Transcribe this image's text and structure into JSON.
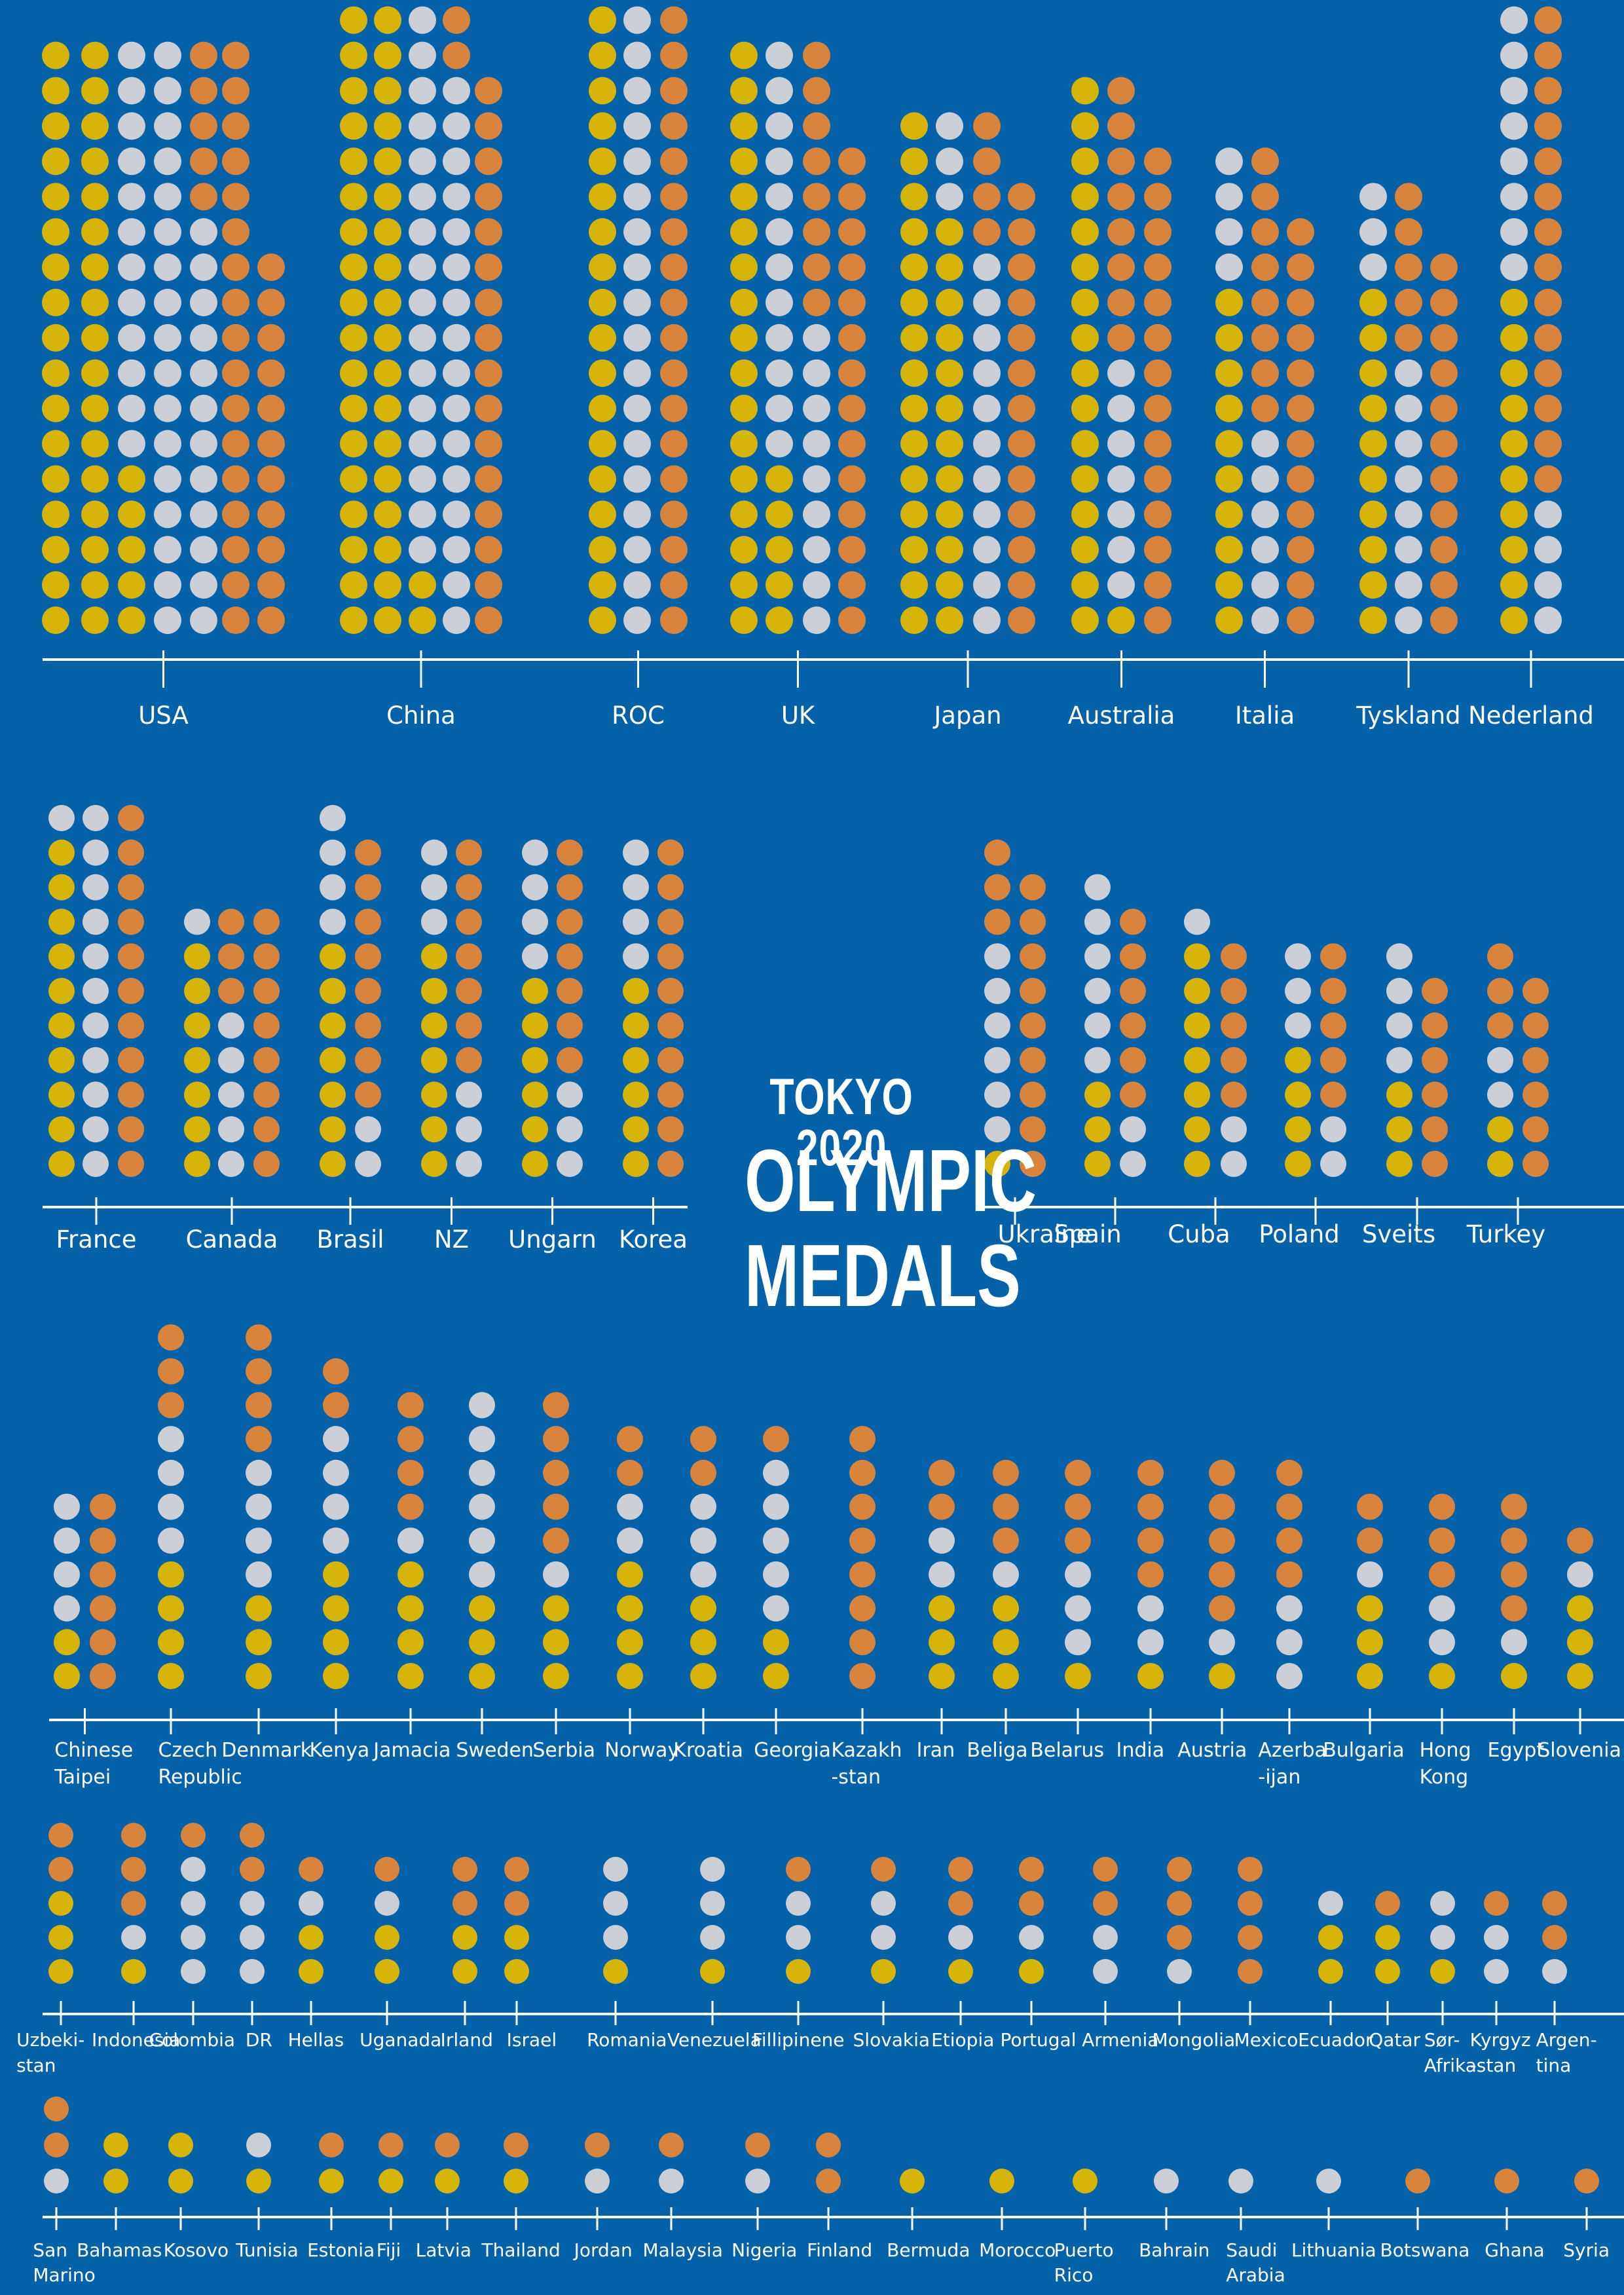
{
  "title": {
    "line1": "TOKYO 2020",
    "line2": "OLYMPIC",
    "line3": "MEDALS"
  },
  "colors": {
    "background": "#0562a8",
    "gold": "#d6b40a",
    "silver": "#cdcfd6",
    "bronze": "#d9843d",
    "axis": "#ffffff",
    "label": "#ffffff"
  },
  "chart_data": {
    "type": "pictogram-bar",
    "legend": "none",
    "series": [
      "gold",
      "silver",
      "bronze"
    ],
    "countries": [
      {
        "label": "USA",
        "gold": 39,
        "silver": 41,
        "bronze": 33
      },
      {
        "label": "China",
        "gold": 38,
        "silver": 32,
        "bronze": 18
      },
      {
        "label": "ROC",
        "gold": 20,
        "silver": 28,
        "bronze": 23
      },
      {
        "label": "UK",
        "gold": 22,
        "silver": 21,
        "bronze": 22
      },
      {
        "label": "Japan",
        "gold": 27,
        "silver": 14,
        "bronze": 17
      },
      {
        "label": "Australia",
        "gold": 17,
        "silver": 7,
        "bronze": 22
      },
      {
        "label": "Italia",
        "gold": 10,
        "silver": 10,
        "bronze": 20
      },
      {
        "label": "Tyskland",
        "gold": 10,
        "silver": 11,
        "bronze": 16
      },
      {
        "label": "Nederland",
        "gold": 10,
        "silver": 12,
        "bronze": 14
      },
      {
        "label": "France",
        "gold": 10,
        "silver": 12,
        "bronze": 11
      },
      {
        "label": "Canada",
        "gold": 7,
        "silver": 6,
        "bronze": 11
      },
      {
        "label": "Brasil",
        "gold": 7,
        "silver": 6,
        "bronze": 8
      },
      {
        "label": "NZ",
        "gold": 7,
        "silver": 6,
        "bronze": 7
      },
      {
        "label": "Ungarn",
        "gold": 6,
        "silver": 7,
        "bronze": 7
      },
      {
        "label": "Korea",
        "gold": 6,
        "silver": 4,
        "bronze": 10
      },
      {
        "label": "Ukraine",
        "gold": 1,
        "silver": 6,
        "bronze": 12
      },
      {
        "label": "Spain",
        "gold": 3,
        "silver": 8,
        "bronze": 6
      },
      {
        "label": "Cuba",
        "gold": 7,
        "silver": 3,
        "bronze": 5
      },
      {
        "label": "Poland",
        "gold": 4,
        "silver": 5,
        "bronze": 5
      },
      {
        "label": "Sveits",
        "gold": 3,
        "silver": 4,
        "bronze": 6
      },
      {
        "label": "Turkey",
        "gold": 2,
        "silver": 2,
        "bronze": 9
      },
      {
        "label": "Chinese Taipei",
        "gold": 2,
        "silver": 4,
        "bronze": 6
      },
      {
        "label": "Czech Republic",
        "gold": 4,
        "silver": 4,
        "bronze": 3
      },
      {
        "label": "Denmark",
        "gold": 3,
        "silver": 4,
        "bronze": 4
      },
      {
        "label": "Kenya",
        "gold": 4,
        "silver": 4,
        "bronze": 2
      },
      {
        "label": "Jamacia",
        "gold": 4,
        "silver": 1,
        "bronze": 4
      },
      {
        "label": "Sweden",
        "gold": 3,
        "silver": 6,
        "bronze": 0
      },
      {
        "label": "Serbia",
        "gold": 3,
        "silver": 1,
        "bronze": 5
      },
      {
        "label": "Norway",
        "gold": 4,
        "silver": 2,
        "bronze": 2
      },
      {
        "label": "Kroatia",
        "gold": 3,
        "silver": 3,
        "bronze": 2
      },
      {
        "label": "Georgia",
        "gold": 2,
        "silver": 5,
        "bronze": 1
      },
      {
        "label": "Kazakh -stan",
        "gold": 0,
        "silver": 0,
        "bronze": 8
      },
      {
        "label": "Iran",
        "gold": 3,
        "silver": 2,
        "bronze": 2
      },
      {
        "label": "Beliga",
        "gold": 3,
        "silver": 1,
        "bronze": 3
      },
      {
        "label": "Belarus",
        "gold": 1,
        "silver": 3,
        "bronze": 3
      },
      {
        "label": "India",
        "gold": 1,
        "silver": 2,
        "bronze": 4
      },
      {
        "label": "Austria",
        "gold": 1,
        "silver": 1,
        "bronze": 5
      },
      {
        "label": "Azerba -ijan",
        "gold": 0,
        "silver": 3,
        "bronze": 4
      },
      {
        "label": "Bulgaria",
        "gold": 3,
        "silver": 1,
        "bronze": 2
      },
      {
        "label": "Hong Kong",
        "gold": 1,
        "silver": 2,
        "bronze": 3
      },
      {
        "label": "Egypt",
        "gold": 1,
        "silver": 1,
        "bronze": 4
      },
      {
        "label": "Slovenia",
        "gold": 3,
        "silver": 1,
        "bronze": 1
      },
      {
        "label": "Uzbeki- stan",
        "gold": 3,
        "silver": 0,
        "bronze": 2
      },
      {
        "label": "Indonesia",
        "gold": 1,
        "silver": 1,
        "bronze": 3
      },
      {
        "label": "Colombia",
        "gold": 0,
        "silver": 4,
        "bronze": 1
      },
      {
        "label": "DR",
        "gold": 0,
        "silver": 3,
        "bronze": 2
      },
      {
        "label": "Hellas",
        "gold": 2,
        "silver": 1,
        "bronze": 1
      },
      {
        "label": "Uganada",
        "gold": 2,
        "silver": 1,
        "bronze": 1
      },
      {
        "label": "Irland",
        "gold": 2,
        "silver": 0,
        "bronze": 2
      },
      {
        "label": "Israel",
        "gold": 2,
        "silver": 0,
        "bronze": 2
      },
      {
        "label": "Romania",
        "gold": 1,
        "silver": 3,
        "bronze": 0
      },
      {
        "label": "Venezuela",
        "gold": 1,
        "silver": 3,
        "bronze": 0
      },
      {
        "label": "Fillipinene",
        "gold": 1,
        "silver": 2,
        "bronze": 1
      },
      {
        "label": "Slovakia",
        "gold": 1,
        "silver": 2,
        "bronze": 1
      },
      {
        "label": "Etiopia",
        "gold": 1,
        "silver": 1,
        "bronze": 2
      },
      {
        "label": "Portugal",
        "gold": 1,
        "silver": 1,
        "bronze": 2
      },
      {
        "label": "Armenia",
        "gold": 0,
        "silver": 2,
        "bronze": 2
      },
      {
        "label": "Mongolia",
        "gold": 0,
        "silver": 1,
        "bronze": 3
      },
      {
        "label": "Mexico",
        "gold": 0,
        "silver": 0,
        "bronze": 4
      },
      {
        "label": "Ecuador",
        "gold": 2,
        "silver": 1,
        "bronze": 0
      },
      {
        "label": "Qatar",
        "gold": 2,
        "silver": 0,
        "bronze": 1
      },
      {
        "label": "Sør- Afrika",
        "gold": 1,
        "silver": 2,
        "bronze": 0
      },
      {
        "label": "Kyrgyz -stan",
        "gold": 0,
        "silver": 2,
        "bronze": 1
      },
      {
        "label": "Argen- tina",
        "gold": 0,
        "silver": 1,
        "bronze": 2
      },
      {
        "label": "San Marino",
        "gold": 0,
        "silver": 1,
        "bronze": 2
      },
      {
        "label": "Bahamas",
        "gold": 2,
        "silver": 0,
        "bronze": 0
      },
      {
        "label": "Kosovo",
        "gold": 2,
        "silver": 0,
        "bronze": 0
      },
      {
        "label": "Tunisia",
        "gold": 1,
        "silver": 1,
        "bronze": 0
      },
      {
        "label": "Estonia",
        "gold": 1,
        "silver": 0,
        "bronze": 1
      },
      {
        "label": "Fiji",
        "gold": 1,
        "silver": 0,
        "bronze": 1
      },
      {
        "label": "Latvia",
        "gold": 1,
        "silver": 0,
        "bronze": 1
      },
      {
        "label": "Thailand",
        "gold": 1,
        "silver": 0,
        "bronze": 1
      },
      {
        "label": "Jordan",
        "gold": 0,
        "silver": 1,
        "bronze": 1
      },
      {
        "label": "Malaysia",
        "gold": 0,
        "silver": 1,
        "bronze": 1
      },
      {
        "label": "Nigeria",
        "gold": 0,
        "silver": 1,
        "bronze": 1
      },
      {
        "label": "Finland",
        "gold": 0,
        "silver": 0,
        "bronze": 2
      },
      {
        "label": "Bermuda",
        "gold": 1,
        "silver": 0,
        "bronze": 0
      },
      {
        "label": "Morocco",
        "gold": 1,
        "silver": 0,
        "bronze": 0
      },
      {
        "label": "Puerto Rico",
        "gold": 1,
        "silver": 0,
        "bronze": 0
      },
      {
        "label": "Bahrain",
        "gold": 0,
        "silver": 1,
        "bronze": 0
      },
      {
        "label": "Saudi Arabia",
        "gold": 0,
        "silver": 1,
        "bronze": 0
      },
      {
        "label": "Lithuania",
        "gold": 0,
        "silver": 1,
        "bronze": 0
      },
      {
        "label": "Botswana",
        "gold": 0,
        "silver": 0,
        "bronze": 1
      },
      {
        "label": "Ghana",
        "gold": 0,
        "silver": 0,
        "bronze": 1
      },
      {
        "label": "Syria",
        "gold": 0,
        "silver": 0,
        "bronze": 1
      }
    ]
  }
}
